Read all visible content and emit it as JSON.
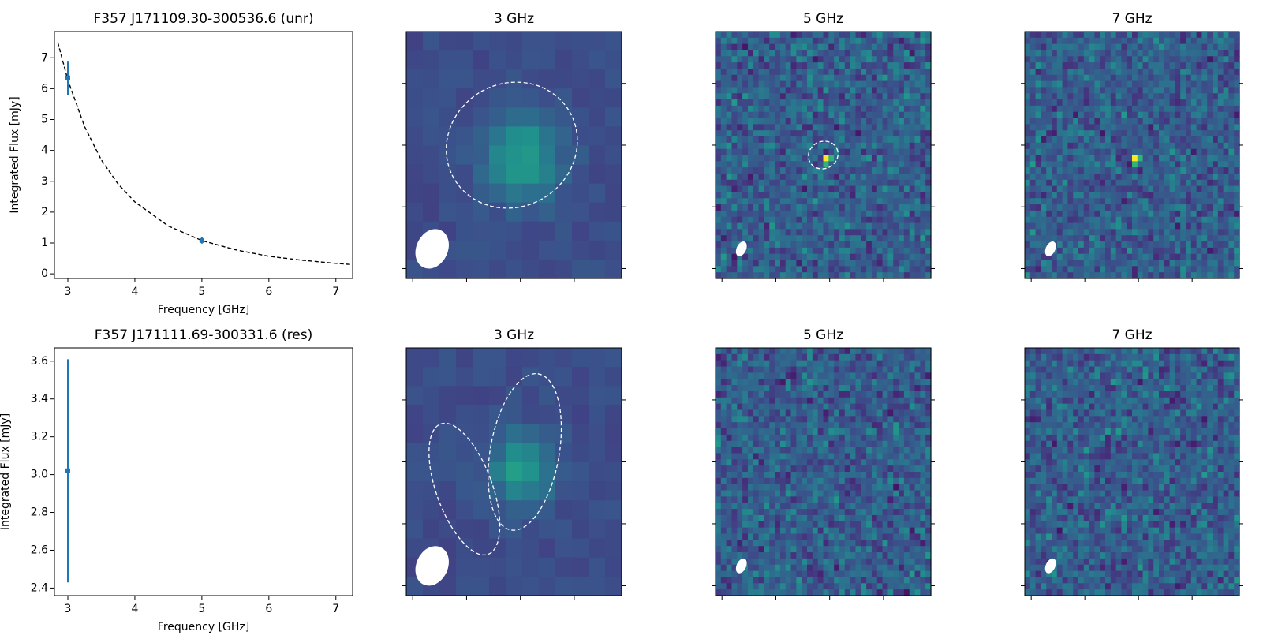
{
  "chart_data": [
    {
      "type": "errorbar",
      "title": "F357 J171109.30-300536.6 (unr)",
      "xlabel": "Frequency [GHz]",
      "ylabel": "Integrated Flux [mJy]",
      "x": [
        3,
        5
      ],
      "values": [
        6.35,
        1.08
      ],
      "errors": [
        0.55,
        0.1
      ],
      "color": "#1f77b4",
      "fit": {
        "x": [
          2.85,
          3,
          3.25,
          3.5,
          3.75,
          4,
          4.5,
          5,
          5.5,
          6,
          6.5,
          7,
          7.25
        ],
        "y": [
          7.5,
          6.28,
          4.77,
          3.69,
          2.91,
          2.33,
          1.55,
          1.08,
          0.78,
          0.57,
          0.44,
          0.34,
          0.3
        ]
      },
      "xlim": [
        2.8,
        7.25
      ],
      "ylim": [
        -0.15,
        7.85
      ],
      "xticks": [
        3,
        4,
        5,
        6,
        7
      ],
      "yticks": [
        0,
        1,
        2,
        3,
        4,
        5,
        6,
        7
      ]
    },
    {
      "type": "image",
      "title": "3 GHz"
    },
    {
      "type": "image",
      "title": "5 GHz"
    },
    {
      "type": "image",
      "title": "7 GHz"
    },
    {
      "type": "errorbar",
      "title": "F357 J171111.69-300331.6 (res)",
      "xlabel": "Frequency [GHz]",
      "ylabel": "Integrated Flux [mJy]",
      "x": [
        3
      ],
      "values": [
        3.02
      ],
      "errors": [
        0.59
      ],
      "color": "#1f77b4",
      "xlim": [
        2.8,
        7.25
      ],
      "ylim": [
        2.36,
        3.67
      ],
      "xticks": [
        3,
        4,
        5,
        6,
        7
      ],
      "yticks": [
        2.4,
        2.6,
        2.8,
        {
          "value": 3,
          "label": "3.0"
        },
        3.2,
        3.4,
        3.6
      ]
    },
    {
      "type": "image",
      "title": "3 GHz"
    },
    {
      "type": "image",
      "title": "5 GHz"
    },
    {
      "type": "image",
      "title": "7 GHz"
    }
  ]
}
